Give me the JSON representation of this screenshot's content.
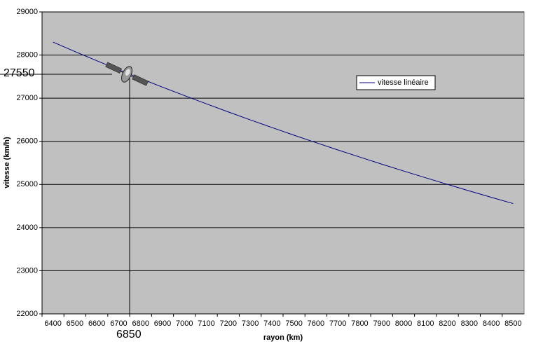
{
  "chart_data": {
    "type": "line",
    "x_label": "rayon (km)",
    "y_label": "vitesse (km/h)",
    "categories": [
      6400,
      6500,
      6600,
      6700,
      6800,
      6900,
      7000,
      7100,
      7200,
      7300,
      7400,
      7500,
      7600,
      7700,
      7800,
      7900,
      8000,
      8100,
      8200,
      8300,
      8400,
      8500
    ],
    "series": [
      {
        "name": "vitesse linéaire",
        "color": "#000080",
        "values": [
          28300,
          28081,
          27868,
          27659,
          27455,
          27255,
          27060,
          26869,
          26682,
          26498,
          26319,
          26142,
          25970,
          25801,
          25635,
          25472,
          25312,
          25156,
          25002,
          24851,
          24702,
          24557
        ]
      }
    ],
    "ylim": [
      22000,
      29000
    ],
    "yticks": [
      22000,
      23000,
      24000,
      25000,
      26000,
      27000,
      28000,
      29000
    ],
    "grid": true,
    "background": "#c0c0c0",
    "annotations": [
      "27550",
      "6850"
    ]
  }
}
